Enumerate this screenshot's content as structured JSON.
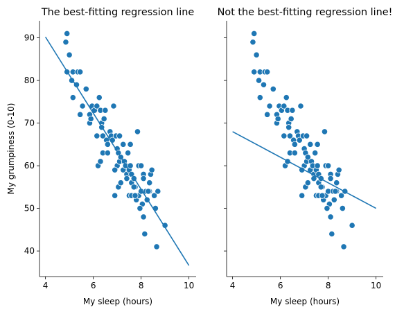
{
  "chart_data": [
    {
      "type": "scatter",
      "title": "The best-fitting regression line",
      "xlabel": "My sleep (hours)",
      "ylabel": "My grumpiness (0-10)",
      "xlim": [
        3.75,
        10.3
      ],
      "ylim": [
        34,
        94
      ],
      "x_ticks": [
        4,
        6,
        8,
        10
      ],
      "y_ticks": [
        40,
        50,
        60,
        70,
        80,
        90
      ],
      "grid": false,
      "colors": {
        "points": "#1f77b4",
        "line": "#1f77b4"
      },
      "points": [
        [
          4.9,
          91
        ],
        [
          4.85,
          89
        ],
        [
          5.0,
          86
        ],
        [
          4.9,
          82
        ],
        [
          5.15,
          82
        ],
        [
          5.35,
          82
        ],
        [
          5.45,
          82
        ],
        [
          5.1,
          80
        ],
        [
          5.3,
          79
        ],
        [
          5.15,
          76
        ],
        [
          5.45,
          72
        ],
        [
          5.55,
          74
        ],
        [
          5.7,
          78
        ],
        [
          5.85,
          72
        ],
        [
          5.85,
          70
        ],
        [
          5.95,
          74
        ],
        [
          5.9,
          71
        ],
        [
          6.05,
          73
        ],
        [
          6.15,
          74
        ],
        [
          6.15,
          67
        ],
        [
          6.25,
          76
        ],
        [
          6.3,
          73
        ],
        [
          6.35,
          70
        ],
        [
          6.4,
          67
        ],
        [
          6.45,
          71
        ],
        [
          6.5,
          73
        ],
        [
          6.4,
          63
        ],
        [
          6.35,
          69
        ],
        [
          6.55,
          66
        ],
        [
          6.6,
          63
        ],
        [
          6.6,
          65
        ],
        [
          6.7,
          68
        ],
        [
          6.75,
          67
        ],
        [
          6.8,
          66
        ],
        [
          6.85,
          74
        ],
        [
          6.2,
          60
        ],
        [
          6.3,
          61
        ],
        [
          6.95,
          67
        ],
        [
          7.0,
          60
        ],
        [
          7.0,
          64
        ],
        [
          6.9,
          59
        ],
        [
          7.05,
          63
        ],
        [
          7.1,
          67
        ],
        [
          7.1,
          61
        ],
        [
          7.15,
          62
        ],
        [
          7.25,
          65
        ],
        [
          7.25,
          59
        ],
        [
          7.3,
          61
        ],
        [
          7.35,
          60
        ],
        [
          7.4,
          58
        ],
        [
          7.4,
          57
        ],
        [
          7.45,
          63
        ],
        [
          7.5,
          59
        ],
        [
          7.55,
          60
        ],
        [
          7.55,
          65
        ],
        [
          7.6,
          58
        ],
        [
          7.6,
          56
        ],
        [
          7.5,
          53
        ],
        [
          7.7,
          57
        ],
        [
          7.75,
          55
        ],
        [
          7.8,
          52
        ],
        [
          7.85,
          68
        ],
        [
          7.9,
          60
        ],
        [
          7.9,
          53
        ],
        [
          8.0,
          54
        ],
        [
          8.0,
          60
        ],
        [
          8.05,
          51
        ],
        [
          8.1,
          58
        ],
        [
          8.1,
          48
        ],
        [
          8.15,
          44
        ],
        [
          8.2,
          54
        ],
        [
          8.25,
          52
        ],
        [
          8.35,
          56
        ],
        [
          8.35,
          54
        ],
        [
          8.4,
          58
        ],
        [
          8.45,
          59
        ],
        [
          8.55,
          53
        ],
        [
          8.6,
          50
        ],
        [
          8.65,
          41
        ],
        [
          8.7,
          54
        ],
        [
          9.0,
          46
        ],
        [
          7.95,
          50
        ],
        [
          7.6,
          53
        ],
        [
          7.05,
          55
        ],
        [
          7.15,
          56
        ],
        [
          6.9,
          53
        ],
        [
          7.7,
          55
        ],
        [
          8.3,
          54
        ],
        [
          8.1,
          57
        ],
        [
          7.75,
          53
        ]
      ],
      "line": {
        "x": [
          4.0,
          10.0
        ],
        "y": [
          90.2,
          36.6
        ]
      }
    },
    {
      "type": "scatter",
      "title": "Not the best-fitting regression line!",
      "xlabel": "My sleep (hours)",
      "ylabel": "",
      "xlim": [
        3.75,
        10.3
      ],
      "ylim": [
        34,
        94
      ],
      "x_ticks": [
        4,
        6,
        8,
        10
      ],
      "y_ticks": [
        40,
        50,
        60,
        70,
        80,
        90
      ],
      "grid": false,
      "colors": {
        "points": "#1f77b4",
        "line": "#1f77b4"
      },
      "points": [
        [
          4.9,
          91
        ],
        [
          4.85,
          89
        ],
        [
          5.0,
          86
        ],
        [
          4.9,
          82
        ],
        [
          5.15,
          82
        ],
        [
          5.35,
          82
        ],
        [
          5.45,
          82
        ],
        [
          5.1,
          80
        ],
        [
          5.3,
          79
        ],
        [
          5.15,
          76
        ],
        [
          5.45,
          72
        ],
        [
          5.55,
          74
        ],
        [
          5.7,
          78
        ],
        [
          5.85,
          72
        ],
        [
          5.85,
          70
        ],
        [
          5.95,
          74
        ],
        [
          5.9,
          71
        ],
        [
          6.05,
          73
        ],
        [
          6.15,
          74
        ],
        [
          6.15,
          67
        ],
        [
          6.25,
          76
        ],
        [
          6.3,
          73
        ],
        [
          6.35,
          70
        ],
        [
          6.4,
          67
        ],
        [
          6.45,
          71
        ],
        [
          6.5,
          73
        ],
        [
          6.4,
          63
        ],
        [
          6.35,
          69
        ],
        [
          6.55,
          66
        ],
        [
          6.6,
          63
        ],
        [
          6.6,
          65
        ],
        [
          6.7,
          68
        ],
        [
          6.75,
          67
        ],
        [
          6.8,
          66
        ],
        [
          6.85,
          74
        ],
        [
          6.2,
          60
        ],
        [
          6.3,
          61
        ],
        [
          6.95,
          67
        ],
        [
          7.0,
          60
        ],
        [
          7.0,
          64
        ],
        [
          6.9,
          59
        ],
        [
          7.05,
          63
        ],
        [
          7.1,
          67
        ],
        [
          7.1,
          61
        ],
        [
          7.15,
          62
        ],
        [
          7.25,
          65
        ],
        [
          7.25,
          59
        ],
        [
          7.3,
          61
        ],
        [
          7.35,
          60
        ],
        [
          7.4,
          58
        ],
        [
          7.4,
          57
        ],
        [
          7.45,
          63
        ],
        [
          7.5,
          59
        ],
        [
          7.55,
          60
        ],
        [
          7.55,
          65
        ],
        [
          7.6,
          58
        ],
        [
          7.6,
          56
        ],
        [
          7.5,
          53
        ],
        [
          7.7,
          57
        ],
        [
          7.75,
          55
        ],
        [
          7.8,
          52
        ],
        [
          7.85,
          68
        ],
        [
          7.9,
          60
        ],
        [
          7.9,
          53
        ],
        [
          8.0,
          54
        ],
        [
          8.0,
          60
        ],
        [
          8.05,
          51
        ],
        [
          8.1,
          58
        ],
        [
          8.1,
          48
        ],
        [
          8.15,
          44
        ],
        [
          8.2,
          54
        ],
        [
          8.25,
          52
        ],
        [
          8.35,
          56
        ],
        [
          8.35,
          54
        ],
        [
          8.4,
          58
        ],
        [
          8.45,
          59
        ],
        [
          8.55,
          53
        ],
        [
          8.6,
          50
        ],
        [
          8.65,
          41
        ],
        [
          8.7,
          54
        ],
        [
          9.0,
          46
        ],
        [
          7.95,
          50
        ],
        [
          7.6,
          53
        ],
        [
          7.05,
          55
        ],
        [
          7.15,
          56
        ],
        [
          6.9,
          53
        ],
        [
          7.7,
          55
        ],
        [
          8.3,
          54
        ],
        [
          8.1,
          57
        ],
        [
          7.75,
          53
        ]
      ],
      "line": {
        "x": [
          4.0,
          10.0
        ],
        "y": [
          68.0,
          50.0
        ]
      }
    }
  ]
}
